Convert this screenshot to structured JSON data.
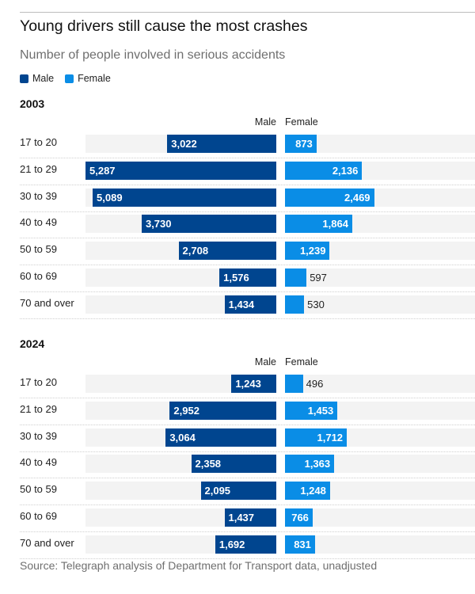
{
  "colors": {
    "male": "#00458f",
    "female": "#0a8de6",
    "track": "#f3f3f3",
    "label_inside": "#ffffff",
    "label_outside": "#222222"
  },
  "chart_data": {
    "type": "bar",
    "orientation": "horizontal-butterfly",
    "title": "Young drivers still cause the most crashes",
    "subtitle": "Number of people involved in serious accidents",
    "legend": [
      {
        "name": "Male",
        "color": "#00458f"
      },
      {
        "name": "Female",
        "color": "#0a8de6"
      }
    ],
    "legend_position": "top-left",
    "categories": [
      "17 to 20",
      "21 to 29",
      "30 to 39",
      "40 to 49",
      "50 to 59",
      "60 to 69",
      "70 and over"
    ],
    "column_headers": {
      "male": "Male",
      "female": "Female"
    },
    "xlim": [
      0,
      5287
    ],
    "panels": [
      {
        "year": "2003",
        "series": [
          {
            "name": "Male",
            "values": [
              3022,
              5287,
              5089,
              3730,
              2708,
              1576,
              1434
            ]
          },
          {
            "name": "Female",
            "values": [
              873,
              2136,
              2469,
              1864,
              1239,
              597,
              530
            ]
          }
        ]
      },
      {
        "year": "2024",
        "series": [
          {
            "name": "Male",
            "values": [
              1243,
              2952,
              3064,
              2358,
              2095,
              1437,
              1692
            ]
          },
          {
            "name": "Female",
            "values": [
              496,
              1453,
              1712,
              1363,
              1248,
              766,
              831
            ]
          }
        ]
      }
    ],
    "source": "Source: Telegraph analysis of Department for Transport data, unadjusted"
  }
}
